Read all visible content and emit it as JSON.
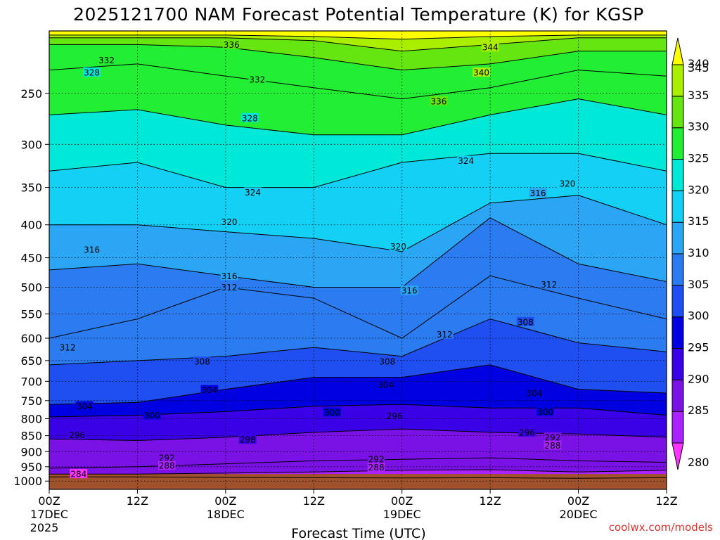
{
  "chart_data": {
    "type": "heatmap",
    "title": "2025121700 NAM Forecast Potential Temperature (K) for KGSP",
    "xlabel": "Forecast Time (UTC)",
    "ylabel": "",
    "credit": "coolwx.com/models",
    "x_ticks": [
      {
        "hours": 0,
        "label": "00Z",
        "sub1": "17DEC",
        "sub2": "2025"
      },
      {
        "hours": 12,
        "label": "12Z",
        "sub1": "",
        "sub2": ""
      },
      {
        "hours": 24,
        "label": "00Z",
        "sub1": "18DEC",
        "sub2": ""
      },
      {
        "hours": 36,
        "label": "12Z",
        "sub1": "",
        "sub2": ""
      },
      {
        "hours": 48,
        "label": "00Z",
        "sub1": "19DEC",
        "sub2": ""
      },
      {
        "hours": 60,
        "label": "12Z",
        "sub1": "",
        "sub2": ""
      },
      {
        "hours": 72,
        "label": "00Z",
        "sub1": "20DEC",
        "sub2": ""
      },
      {
        "hours": 84,
        "label": "12Z",
        "sub1": "",
        "sub2": ""
      }
    ],
    "xlim_hours": [
      0,
      84
    ],
    "y_scale": "log-pressure",
    "y_ticks": [
      {
        "p": 250,
        "label": "250"
      },
      {
        "p": 300,
        "label": "300"
      },
      {
        "p": 350,
        "label": "350"
      },
      {
        "p": 400,
        "label": "400"
      },
      {
        "p": 450,
        "label": "450"
      },
      {
        "p": 500,
        "label": "500"
      },
      {
        "p": 550,
        "label": "550"
      },
      {
        "p": 600,
        "label": "600"
      },
      {
        "p": 650,
        "label": "650"
      },
      {
        "p": 700,
        "label": "700"
      },
      {
        "p": 750,
        "label": "750"
      },
      {
        "p": 800,
        "label": "800"
      },
      {
        "p": 850,
        "label": "850"
      },
      {
        "p": 900,
        "label": "900"
      },
      {
        "p": 950,
        "label": "950"
      },
      {
        "p": 1000,
        "label": "1000"
      }
    ],
    "ylim_hpa": [
      1030,
      200
    ],
    "grid": true,
    "ground_pressure_hpa": 975,
    "colorbar": {
      "levels": [
        {
          "value": 280,
          "label": "280",
          "color": "#ff33ff"
        },
        {
          "value": 285,
          "label": "285",
          "color": "#aa22ff"
        },
        {
          "value": 290,
          "label": "290",
          "color": "#7a12e6"
        },
        {
          "value": 295,
          "label": "295",
          "color": "#3a00e6"
        },
        {
          "value": 300,
          "label": "300",
          "color": "#0000e0"
        },
        {
          "value": 305,
          "label": "305",
          "color": "#1f4ff0"
        },
        {
          "value": 310,
          "label": "310",
          "color": "#2a7cf0"
        },
        {
          "value": 315,
          "label": "315",
          "color": "#2aa6f5"
        },
        {
          "value": 320,
          "label": "320",
          "color": "#14d0f5"
        },
        {
          "value": 325,
          "label": "325",
          "color": "#00e8d8"
        },
        {
          "value": 330,
          "label": "330",
          "color": "#22ee33"
        },
        {
          "value": 335,
          "label": "335",
          "color": "#66e611"
        },
        {
          "value": 340,
          "label": "340",
          "color": "#aaee00"
        },
        {
          "value": 345,
          "label": "345",
          "color": "#ffff00"
        }
      ],
      "ground_color": "#a0522d"
    },
    "isentropes": [
      {
        "theta": 284,
        "p": [
          985,
          985,
          987,
          988,
          989,
          988,
          990,
          988
        ]
      },
      {
        "theta": 288,
        "p": [
          975,
          975,
          972,
          968,
          962,
          960,
          968,
          962
        ]
      },
      {
        "theta": 292,
        "p": [
          955,
          950,
          940,
          930,
          925,
          920,
          930,
          935
        ]
      },
      {
        "theta": 296,
        "p": [
          860,
          865,
          855,
          840,
          830,
          840,
          845,
          855
        ]
      },
      {
        "theta": 300,
        "p": [
          795,
          790,
          780,
          765,
          760,
          770,
          770,
          790
        ]
      },
      {
        "theta": 304,
        "p": [
          760,
          755,
          720,
          690,
          690,
          660,
          720,
          730
        ]
      },
      {
        "theta": 308,
        "p": [
          660,
          650,
          640,
          620,
          640,
          560,
          610,
          630
        ]
      },
      {
        "theta": 312,
        "p": [
          600,
          560,
          500,
          520,
          600,
          480,
          520,
          560
        ]
      },
      {
        "theta": 316,
        "p": [
          470,
          460,
          480,
          500,
          500,
          390,
          460,
          490
        ]
      },
      {
        "theta": 320,
        "p": [
          400,
          400,
          410,
          420,
          440,
          370,
          360,
          400
        ]
      },
      {
        "theta": 324,
        "p": [
          330,
          320,
          350,
          350,
          320,
          310,
          310,
          330
        ]
      },
      {
        "theta": 328,
        "p": [
          270,
          265,
          280,
          290,
          290,
          270,
          255,
          270
        ]
      },
      {
        "theta": 332,
        "p": [
          230,
          225,
          235,
          245,
          255,
          245,
          230,
          235
        ]
      },
      {
        "theta": 336,
        "p": [
          210,
          210,
          212,
          220,
          230,
          225,
          215,
          215
        ]
      },
      {
        "theta": 340,
        "p": [
          205,
          205,
          205,
          207,
          215,
          210,
          205,
          205
        ]
      },
      {
        "theta": 344,
        "p": [
          203,
          203,
          203,
          204,
          206,
          204,
          203,
          203
        ]
      }
    ],
    "contour_labels": [
      {
        "text": "336",
        "hours": 24.8,
        "p": 210
      },
      {
        "text": "344",
        "hours": 60.0,
        "p": 212
      },
      {
        "text": "332",
        "hours": 7.8,
        "p": 222
      },
      {
        "text": "340",
        "hours": 58.8,
        "p": 232
      },
      {
        "text": "332",
        "hours": 28.3,
        "p": 238
      },
      {
        "text": "328",
        "hours": 5.8,
        "p": 232
      },
      {
        "text": "336",
        "hours": 53.0,
        "p": 257
      },
      {
        "text": "328",
        "hours": 27.3,
        "p": 273
      },
      {
        "text": "324",
        "hours": 56.7,
        "p": 318
      },
      {
        "text": "320",
        "hours": 70.5,
        "p": 345
      },
      {
        "text": "324",
        "hours": 27.7,
        "p": 356
      },
      {
        "text": "316",
        "hours": 66.5,
        "p": 357
      },
      {
        "text": "320",
        "hours": 24.5,
        "p": 396
      },
      {
        "text": "316",
        "hours": 5.8,
        "p": 437
      },
      {
        "text": "320",
        "hours": 47.5,
        "p": 432
      },
      {
        "text": "316",
        "hours": 24.5,
        "p": 480
      },
      {
        "text": "312",
        "hours": 68.0,
        "p": 495
      },
      {
        "text": "312",
        "hours": 24.5,
        "p": 500
      },
      {
        "text": "316",
        "hours": 49.0,
        "p": 506
      },
      {
        "text": "308",
        "hours": 64.8,
        "p": 566
      },
      {
        "text": "312",
        "hours": 53.8,
        "p": 592
      },
      {
        "text": "312",
        "hours": 2.5,
        "p": 620
      },
      {
        "text": "308",
        "hours": 20.8,
        "p": 652
      },
      {
        "text": "308",
        "hours": 46.0,
        "p": 652
      },
      {
        "text": "304",
        "hours": 45.8,
        "p": 708
      },
      {
        "text": "304",
        "hours": 21.8,
        "p": 722
      },
      {
        "text": "304",
        "hours": 66.0,
        "p": 730
      },
      {
        "text": "304",
        "hours": 4.8,
        "p": 765
      },
      {
        "text": "300",
        "hours": 38.5,
        "p": 782
      },
      {
        "text": "300",
        "hours": 14.0,
        "p": 790
      },
      {
        "text": "296",
        "hours": 47.0,
        "p": 792
      },
      {
        "text": "300",
        "hours": 67.5,
        "p": 780
      },
      {
        "text": "296",
        "hours": 65.0,
        "p": 840
      },
      {
        "text": "296",
        "hours": 3.8,
        "p": 848
      },
      {
        "text": "292",
        "hours": 68.5,
        "p": 855
      },
      {
        "text": "298",
        "hours": 27.0,
        "p": 862
      },
      {
        "text": "288",
        "hours": 68.5,
        "p": 880
      },
      {
        "text": "292",
        "hours": 16.0,
        "p": 920
      },
      {
        "text": "292",
        "hours": 44.5,
        "p": 925
      },
      {
        "text": "288",
        "hours": 16.0,
        "p": 946
      },
      {
        "text": "288",
        "hours": 44.5,
        "p": 952
      },
      {
        "text": "284",
        "hours": 4.0,
        "p": 975
      }
    ]
  }
}
